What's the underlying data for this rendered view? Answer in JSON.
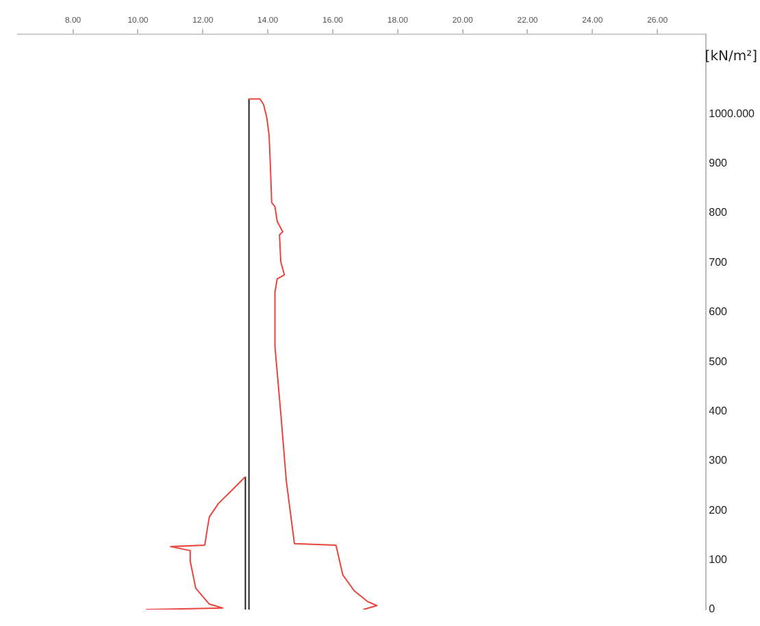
{
  "chart_data": {
    "type": "line",
    "xlabel": "[kN/m²]",
    "xlim": [
      6.3,
      27.5
    ],
    "ylim": [
      0,
      1160
    ],
    "xticks": [
      {
        "value": 8,
        "label": "8.00"
      },
      {
        "value": 10,
        "label": "10.00"
      },
      {
        "value": 12,
        "label": "12.00"
      },
      {
        "value": 14,
        "label": "14.00"
      },
      {
        "value": 16,
        "label": "16.00"
      },
      {
        "value": 18,
        "label": "18.00"
      },
      {
        "value": 20,
        "label": "20.00"
      },
      {
        "value": 22,
        "label": "22.00"
      },
      {
        "value": 24,
        "label": "24.00"
      },
      {
        "value": 26,
        "label": "26.00"
      }
    ],
    "yticks": [
      0,
      100,
      200,
      300,
      400,
      500,
      600,
      700,
      800,
      900,
      {
        "value": 1000,
        "label": "1000.000"
      }
    ],
    "series": [
      {
        "color": "#e8453c",
        "x": [
          13.4,
          13.76,
          13.87,
          13.97,
          14.04,
          14.07,
          14.12,
          14.22,
          14.29,
          14.46,
          14.36,
          14.4,
          14.51,
          14.29,
          14.22,
          14.22,
          14.4,
          14.57,
          14.82,
          16.1,
          16.31,
          16.66,
          17.08,
          17.36,
          16.94
        ],
        "values": [
          1030,
          1030,
          1019,
          992,
          957,
          911,
          821,
          813,
          783,
          762,
          756,
          702,
          675,
          667,
          640,
          531,
          396,
          260,
          133,
          130,
          70,
          38,
          16,
          8,
          0
        ]
      },
      {
        "color": "#e8453c",
        "x": [
          13.31,
          12.9,
          12.48,
          12.2,
          12.13,
          12.06,
          11.01,
          11.61,
          11.61,
          11.78,
          12.2,
          12.61,
          10.25
        ],
        "values": [
          268,
          241,
          214,
          187,
          160,
          130,
          127,
          119,
          98,
          43,
          11,
          3,
          0
        ]
      },
      {
        "color": "#222222",
        "x": [
          13.31,
          13.31
        ],
        "values": [
          0,
          268
        ]
      },
      {
        "color": "#222222",
        "x": [
          13.42,
          13.42
        ],
        "values": [
          0,
          1030
        ]
      }
    ],
    "grid": false,
    "legend": false,
    "marker": "none",
    "line_style": "solid"
  }
}
